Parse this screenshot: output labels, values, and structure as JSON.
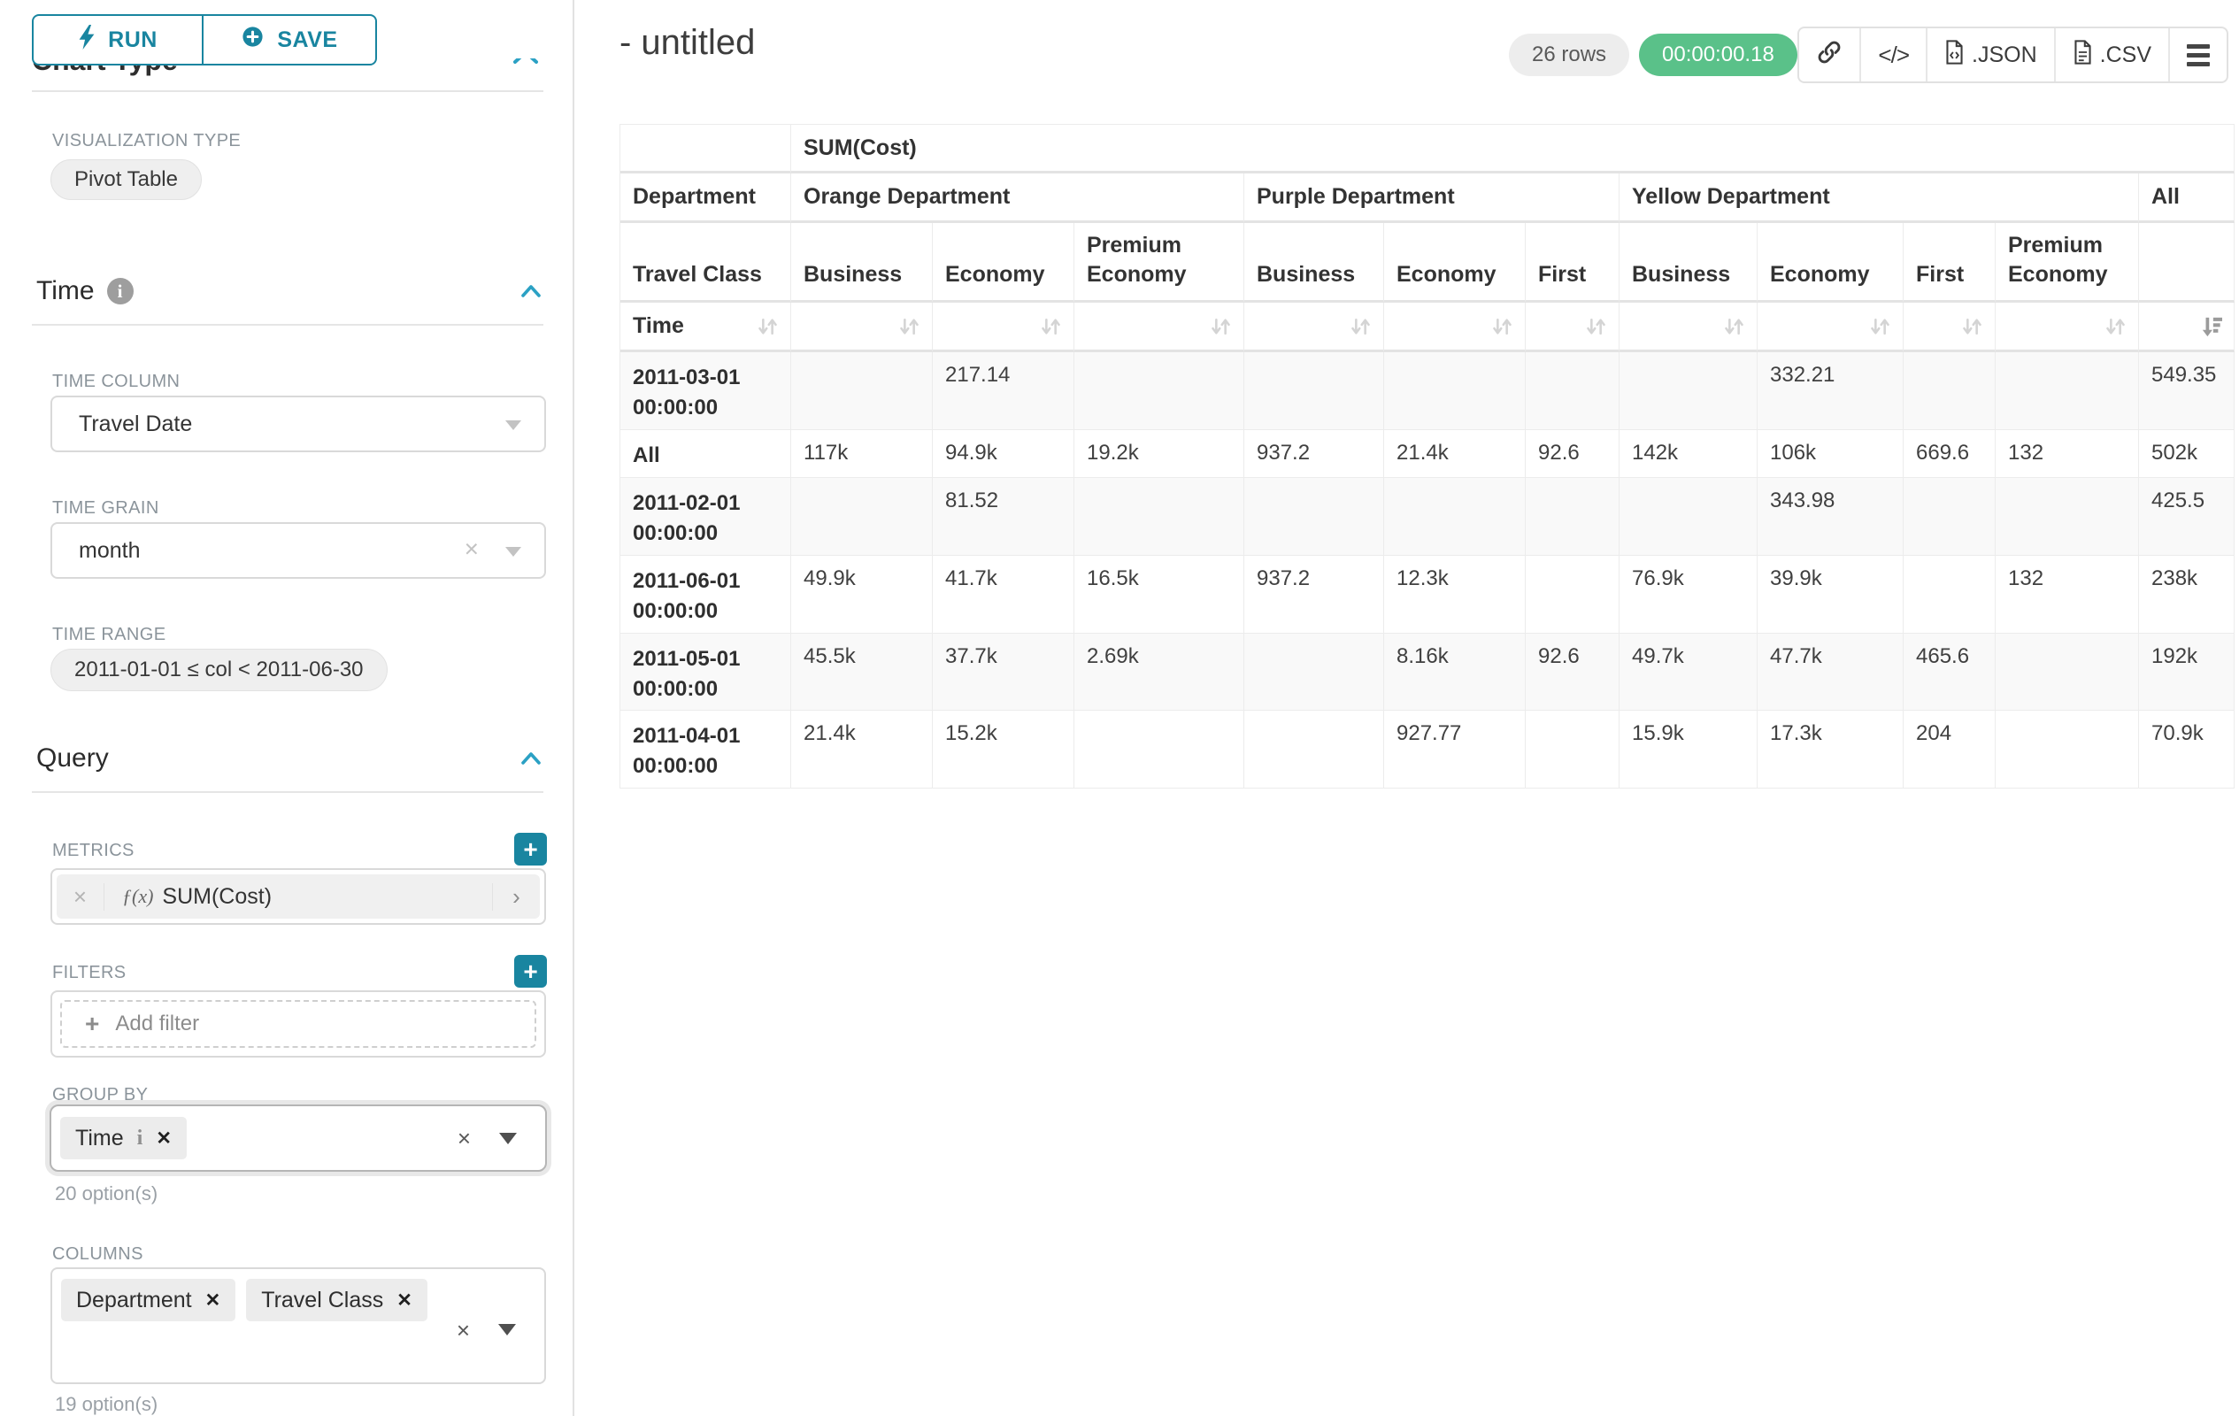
{
  "colors": {
    "accent": "#20a7c9",
    "button_teal": "#1985a0",
    "success_green": "#5ac189"
  },
  "icons": {
    "run": "lightning-bolt-icon",
    "save": "plus-circle-icon",
    "info": "info-icon",
    "collapse": "chevron-up-icon",
    "link": "link-icon",
    "embed": "code-icon",
    "json_file": "file-code-icon",
    "csv_file": "file-text-icon",
    "menu": "hamburger-menu-icon",
    "sort": "sort-arrows-icon",
    "sort_desc": "sort-descending-icon"
  },
  "sidebar": {
    "run_label": "RUN",
    "save_label": "SAVE",
    "chart_type_heading": "Chart Type",
    "viz_type_label": "VISUALIZATION TYPE",
    "viz_type_value": "Pivot Table",
    "time_title": "Time",
    "time_column_label": "TIME COLUMN",
    "time_column_value": "Travel Date",
    "time_grain_label": "TIME GRAIN",
    "time_grain_value": "month",
    "time_range_label": "TIME RANGE",
    "time_range_value": "2011-01-01 ≤ col < 2011-06-30",
    "query_title": "Query",
    "metrics_label": "METRICS",
    "metric_fx": "ƒ(x)",
    "metric_name": "SUM(Cost)",
    "filters_label": "FILTERS",
    "add_filter_label": "Add filter",
    "group_by_label": "GROUP BY",
    "group_by_chip": "Time",
    "group_by_chip_info": "i",
    "group_by_count": "20 option(s)",
    "columns_label": "COLUMNS",
    "column_chips": [
      "Department",
      "Travel Class"
    ],
    "columns_count": "19 option(s)"
  },
  "header": {
    "title": "- untitled",
    "rows_badge": "26 rows",
    "timer_badge": "00:00:00.18",
    "export_json_label": ".JSON",
    "export_csv_label": ".CSV"
  },
  "pivot_table": {
    "metric_label": "SUM(Cost)",
    "department_label": "Department",
    "travel_class_label": "Travel Class",
    "time_label": "Time",
    "column_groups": [
      {
        "label": "Orange Department",
        "span": 3
      },
      {
        "label": "Purple Department",
        "span": 3
      },
      {
        "label": "Yellow Department",
        "span": 4
      },
      {
        "label": "All",
        "span": 1
      }
    ],
    "leaf_columns": [
      "Business",
      "Economy",
      "Premium Economy",
      "Business",
      "Economy",
      "First",
      "Business",
      "Economy",
      "First",
      "Premium Economy",
      ""
    ],
    "rows": [
      {
        "label": "2011-03-01 00:00:00",
        "values": [
          "",
          "217.14",
          "",
          "",
          "",
          "",
          "",
          "332.21",
          "",
          "",
          "549.35"
        ]
      },
      {
        "label": "All",
        "values": [
          "117k",
          "94.9k",
          "19.2k",
          "937.2",
          "21.4k",
          "92.6",
          "142k",
          "106k",
          "669.6",
          "132",
          "502k"
        ]
      },
      {
        "label": "2011-02-01 00:00:00",
        "values": [
          "",
          "81.52",
          "",
          "",
          "",
          "",
          "",
          "343.98",
          "",
          "",
          "425.5"
        ]
      },
      {
        "label": "2011-06-01 00:00:00",
        "values": [
          "49.9k",
          "41.7k",
          "16.5k",
          "937.2",
          "12.3k",
          "",
          "76.9k",
          "39.9k",
          "",
          "132",
          "238k"
        ]
      },
      {
        "label": "2011-05-01 00:00:00",
        "values": [
          "45.5k",
          "37.7k",
          "2.69k",
          "",
          "8.16k",
          "92.6",
          "49.7k",
          "47.7k",
          "465.6",
          "",
          "192k"
        ]
      },
      {
        "label": "2011-04-01 00:00:00",
        "values": [
          "21.4k",
          "15.2k",
          "",
          "",
          "927.77",
          "",
          "15.9k",
          "17.3k",
          "204",
          "",
          "70.9k"
        ]
      }
    ]
  }
}
